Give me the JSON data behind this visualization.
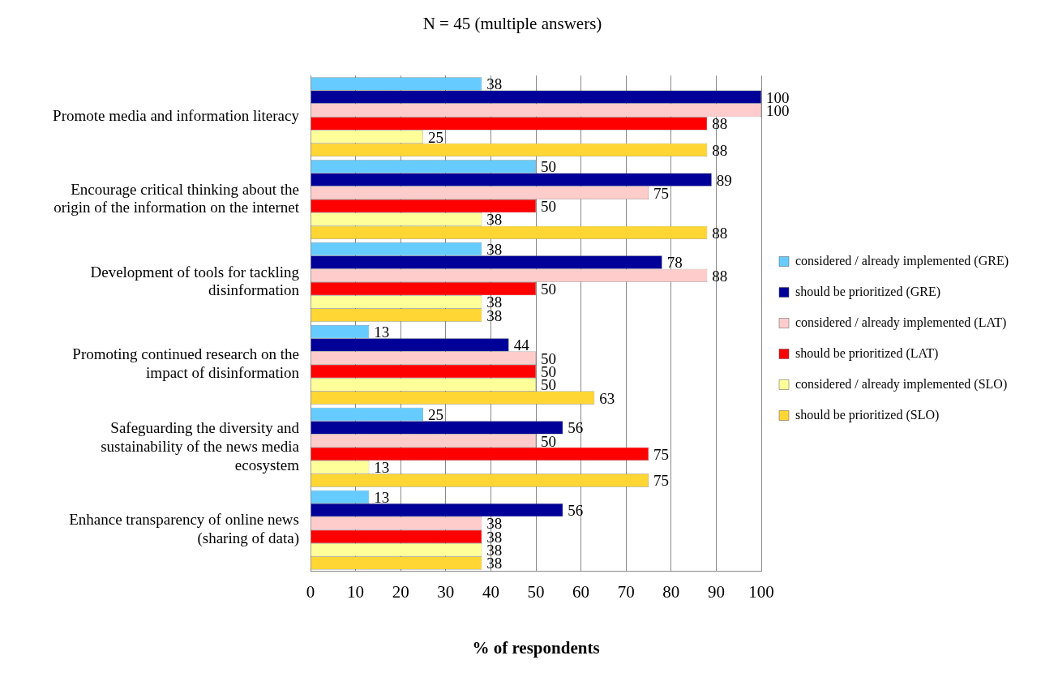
{
  "chart_data": {
    "type": "bar",
    "orientation": "horizontal",
    "title": "N = 45 (multiple answers)",
    "xlabel": "% of respondents",
    "categories": [
      "Promote media and information literacy",
      "Encourage critical thinking about the origin of the information on the internet",
      "Development of tools for tackling disinformation",
      "Promoting continued research on the impact of disinformation",
      "Safeguarding the diversity and sustainability of the news media ecosystem",
      "Enhance transparency of online news (sharing of data)"
    ],
    "series": [
      {
        "name": "considered / already implemented (GRE)",
        "color": "#66ccff",
        "values": [
          38,
          50,
          38,
          13,
          25,
          13
        ]
      },
      {
        "name": "should be prioritized (GRE)",
        "color": "#000099",
        "values": [
          100,
          89,
          78,
          44,
          56,
          56
        ]
      },
      {
        "name": "considered / already implemented (LAT)",
        "color": "#ffcccc",
        "values": [
          100,
          75,
          88,
          50,
          50,
          38
        ]
      },
      {
        "name": "should be prioritized (LAT)",
        "color": "#ff0000",
        "values": [
          88,
          50,
          50,
          50,
          75,
          38
        ]
      },
      {
        "name": "considered / already implemented (SLO)",
        "color": "#ffff99",
        "values": [
          25,
          38,
          38,
          50,
          13,
          38
        ]
      },
      {
        "name": "should be prioritized (SLO)",
        "color": "#ffd633",
        "values": [
          88,
          88,
          38,
          63,
          75,
          38
        ]
      }
    ],
    "xlim": [
      0,
      100
    ],
    "xticks": [
      0,
      10,
      20,
      30,
      40,
      50,
      60,
      70,
      80,
      90,
      100
    ],
    "grid": "x",
    "legend": "right",
    "data_labels": true
  }
}
